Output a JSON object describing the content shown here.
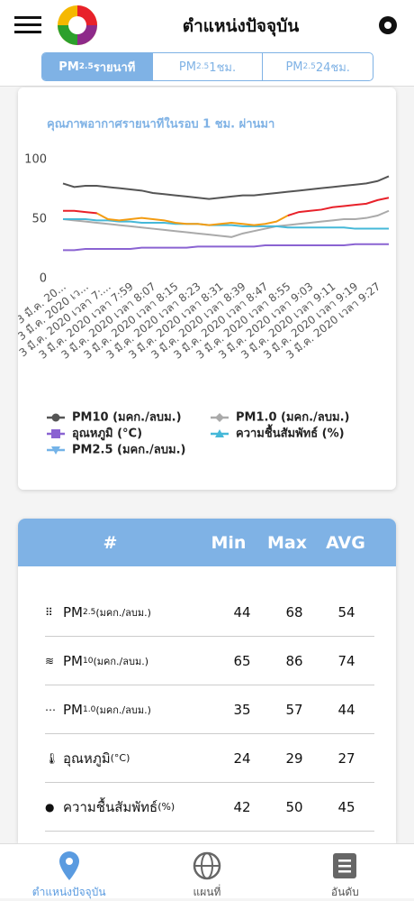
{
  "header": {
    "title": "ตำแหน่งปัจจุบัน"
  },
  "tabs": [
    {
      "label": "PM",
      "sub": "2.5",
      "suffix": " รายนาที"
    },
    {
      "label": "PM",
      "sub": "2.5",
      "suffix": " 1ชม."
    },
    {
      "label": "PM",
      "sub": "2.5",
      "suffix": " 24ชม."
    }
  ],
  "chart_data": {
    "type": "line",
    "title": "คุณภาพอากาศรายนาทีในรอบ 1 ชม. ผ่านมา",
    "categories": [
      "3 มี.ค. 20...",
      null,
      "3 มี.ค. 2020 เว...",
      null,
      "3 มี.ค. 2020 เวลา 7:...",
      null,
      "3 มี.ค. 2020 เวลา 7:59",
      null,
      "3 มี.ค. 2020 เวลา 8:07",
      null,
      "3 มี.ค. 2020 เวลา 8:15",
      null,
      "3 มี.ค. 2020 เวลา 8:23",
      null,
      "3 มี.ค. 2020 เวลา 8:31",
      null,
      "3 มี.ค. 2020 เวลา 8:39",
      null,
      "3 มี.ค. 2020 เวลา 8:47",
      null,
      "3 มี.ค. 2020 เวลา 8:55",
      null,
      "3 มี.ค. 2020 เวลา 9:03",
      null,
      "3 มี.ค. 2020 เวลา 9:11",
      null,
      "3 มี.ค. 2020 เวลา 9:19",
      null,
      "3 มี.ค. 2020 เวลา 9:27",
      null
    ],
    "ylim": [
      0,
      100
    ],
    "yticks": [
      0,
      50,
      100
    ],
    "series": [
      {
        "name": "PM10 (มคก./ลบม.)",
        "color": "#555555",
        "marker": "circle",
        "values": [
          80,
          77,
          78,
          78,
          77,
          76,
          75,
          74,
          72,
          71,
          70,
          69,
          68,
          67,
          68,
          69,
          70,
          70,
          71,
          72,
          73,
          74,
          75,
          76,
          77,
          78,
          79,
          80,
          82,
          86
        ]
      },
      {
        "name": "PM1.0 (มคก./ลบม.)",
        "color": "#aaaaaa",
        "marker": "diamond",
        "values": [
          50,
          49,
          48,
          47,
          46,
          45,
          44,
          43,
          42,
          41,
          40,
          39,
          38,
          37,
          36,
          35,
          38,
          40,
          42,
          44,
          45,
          46,
          47,
          48,
          49,
          50,
          50,
          51,
          53,
          57
        ]
      },
      {
        "name": "อุณหภูมิ (°C)",
        "color": "#8a63d2",
        "marker": "square",
        "values": [
          24,
          24,
          25,
          25,
          25,
          25,
          25,
          26,
          26,
          26,
          26,
          26,
          27,
          27,
          27,
          27,
          27,
          27,
          28,
          28,
          28,
          28,
          28,
          28,
          28,
          28,
          29,
          29,
          29,
          29
        ]
      },
      {
        "name": "ความชื้นสัมพัทธ์ (%)",
        "color": "#45b8d8",
        "marker": "triangle-up",
        "values": [
          50,
          50,
          50,
          49,
          49,
          48,
          48,
          47,
          47,
          47,
          46,
          46,
          46,
          45,
          45,
          45,
          44,
          44,
          44,
          44,
          43,
          43,
          43,
          43,
          43,
          43,
          42,
          42,
          42,
          42
        ]
      },
      {
        "name": "PM2.5 (มคก./ลบม.)",
        "color": "#74b3e8",
        "marker": "triangle-down",
        "values": [
          57,
          57,
          56,
          55,
          50,
          49,
          50,
          51,
          50,
          49,
          47,
          46,
          46,
          45,
          46,
          47,
          46,
          45,
          46,
          48,
          53,
          56,
          57,
          58,
          60,
          61,
          62,
          63,
          66,
          68
        ],
        "point_colors": [
          "#e8212a",
          "#e8212a",
          "#e8212a",
          "#e8212a",
          "#f39c12",
          "#f39c12",
          "#f39c12",
          "#f39c12",
          "#f39c12",
          "#f39c12",
          "#f39c12",
          "#f39c12",
          "#f39c12",
          "#f39c12",
          "#f39c12",
          "#f39c12",
          "#f39c12",
          "#f39c12",
          "#f39c12",
          "#f39c12",
          "#f39c12",
          "#e8212a",
          "#e8212a",
          "#e8212a",
          "#e8212a",
          "#e8212a",
          "#e8212a",
          "#e8212a",
          "#e8212a",
          "#e8212a"
        ]
      }
    ]
  },
  "table": {
    "header": [
      "#",
      "Min",
      "Max",
      "AVG"
    ],
    "rows": [
      {
        "label": "PM",
        "sub": "2.5",
        "unit": " (มคก./ลบม.)",
        "min": 44,
        "max": 68,
        "avg": 54
      },
      {
        "label": "PM",
        "sub": "10",
        "unit": " (มคก./ลบม.)",
        "min": 65,
        "max": 86,
        "avg": 74
      },
      {
        "label": "PM",
        "sub": "1.0",
        "unit": " (มคก./ลบม.)",
        "min": 35,
        "max": 57,
        "avg": 44
      },
      {
        "label": "อุณหภูมิ",
        "sub": "",
        "unit": " (°C)",
        "min": 24,
        "max": 29,
        "avg": 27
      },
      {
        "label": "ความชื้นสัมพัทธ์",
        "sub": "",
        "unit": " (%)",
        "min": 42,
        "max": 50,
        "avg": 45
      }
    ]
  },
  "nav": [
    "ตำแหน่งปัจจุบัน",
    "แผนที่",
    "อันดับ"
  ]
}
